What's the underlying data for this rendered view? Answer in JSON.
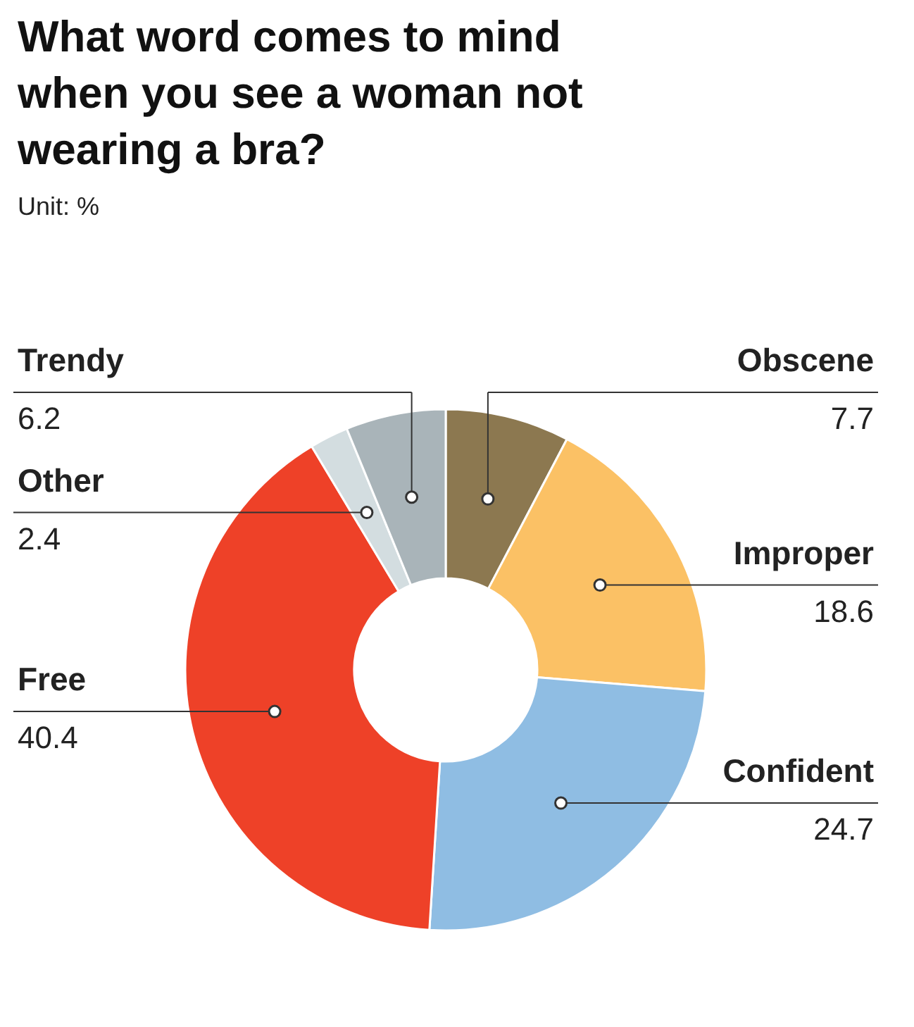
{
  "chart_data": {
    "type": "donut",
    "title": "What word comes to mind when you see a woman not wearing a bra?",
    "subtitle": "Unit: %",
    "categories": [
      "Obscene",
      "Improper",
      "Confident",
      "Free",
      "Other",
      "Trendy"
    ],
    "values": [
      7.7,
      18.6,
      24.7,
      40.4,
      2.4,
      6.2
    ],
    "colors": [
      "#8c7850",
      "#fbc165",
      "#8fbde3",
      "#ee4128",
      "#d3dde0",
      "#a9b4b9"
    ],
    "data_labels": true
  }
}
